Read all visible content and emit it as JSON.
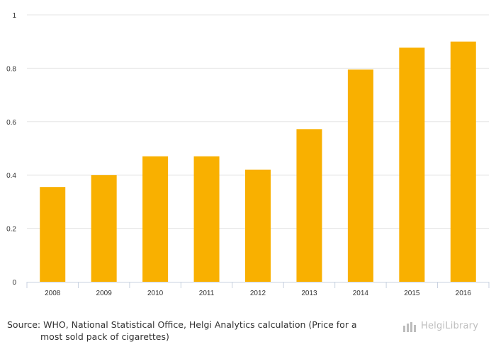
{
  "chart_data": {
    "type": "bar",
    "title": "",
    "xlabel": "",
    "ylabel": "",
    "categories": [
      "2008",
      "2009",
      "2010",
      "2011",
      "2012",
      "2013",
      "2014",
      "2015",
      "2016"
    ],
    "values": [
      0.355,
      0.4,
      0.47,
      0.47,
      0.42,
      0.572,
      0.795,
      0.877,
      0.9
    ],
    "ylim": [
      0,
      1
    ],
    "yticks": [
      "0",
      "0.2",
      "0.4",
      "0.6",
      "0.8",
      "1"
    ],
    "grid": true,
    "legend": "none",
    "bar_color": "#F9B000"
  },
  "footer": {
    "source_line1": "Source: WHO, National Statistical Office, Helgi Analytics calculation (Price for a",
    "source_line2": "most sold pack of cigarettes)"
  },
  "branding": {
    "logo_text": "HelgiLibrary",
    "logo_color": "#BDBDBD"
  }
}
